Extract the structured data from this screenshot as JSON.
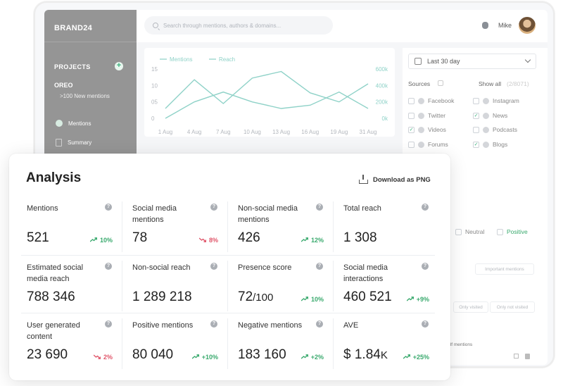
{
  "app": {
    "brand": "BRAND24",
    "search_placeholder": "Search through mentions, authors & domains...",
    "user": "Mike",
    "projects_label": "PROJECTS",
    "project_name": "OREO",
    "project_sub": ">100 New mentions",
    "nav": [
      {
        "label": "Mentions"
      },
      {
        "label": "Summary"
      }
    ]
  },
  "chart": {
    "legend_mentions": "Mentions",
    "legend_reach": "Reach",
    "left_ticks": [
      "15",
      "10",
      "05",
      "0"
    ],
    "right_ticks": [
      "600k",
      "400k",
      "200k",
      "0k"
    ],
    "x_ticks": [
      "1 Aug",
      "4 Aug",
      "7 Aug",
      "10 Aug",
      "13 Aug",
      "16 Aug",
      "19 Aug",
      "31 Aug"
    ],
    "color": "#8fd2c8"
  },
  "chart_data": {
    "type": "line",
    "x": [
      "1 Aug",
      "4 Aug",
      "7 Aug",
      "10 Aug",
      "13 Aug",
      "16 Aug",
      "19 Aug",
      "31 Aug"
    ],
    "ylim": [
      0,
      15
    ],
    "y2lim": [
      0,
      600000
    ],
    "series": [
      {
        "name": "Mentions",
        "values": [
          0,
          5,
          8,
          5,
          3,
          4,
          8,
          3
        ]
      },
      {
        "name": "Reach",
        "values": [
          120000,
          470000,
          180000,
          490000,
          570000,
          310000,
          200000,
          420000
        ]
      }
    ]
  },
  "filters": {
    "date": "Last 30 day",
    "sources_title": "Sources",
    "show_all": "Show all",
    "show_all_count": "(2/8071)",
    "sources": [
      {
        "label": "Facebook",
        "checked": false
      },
      {
        "label": "Instagram",
        "checked": false
      },
      {
        "label": "Twitter",
        "checked": false
      },
      {
        "label": "News",
        "checked": true
      },
      {
        "label": "Videos",
        "checked": true
      },
      {
        "label": "Podcasts",
        "checked": false
      },
      {
        "label": "Forums",
        "checked": false
      },
      {
        "label": "Blogs",
        "checked": true
      }
    ],
    "neutral": "Neutral",
    "positive": "Positive",
    "important": "Important mentions",
    "only_visited": "Only visited",
    "only_not_visited": "Only not visited",
    "pdf_mentions": "pdf mentions"
  },
  "analysis": {
    "title": "Analysis",
    "download": "Download as PNG",
    "metrics": [
      {
        "label": "Mentions",
        "value": "521",
        "change": "10%",
        "dir": "up"
      },
      {
        "label": "Social media mentions",
        "value": "78",
        "change": "8%",
        "dir": "down"
      },
      {
        "label": "Non-social media mentions",
        "value": "426",
        "change": "12%",
        "dir": "up"
      },
      {
        "label": "Total reach",
        "value": "1 308",
        "change": "",
        "dir": "none"
      },
      {
        "label": "Estimated social media reach",
        "value": "788 346",
        "change": "",
        "dir": "none"
      },
      {
        "label": "Non-social reach",
        "value": "1 289 218",
        "change": "",
        "dir": "none"
      },
      {
        "label": "Presence score",
        "value": "72",
        "value_suffix": "/100",
        "change": "10%",
        "dir": "up"
      },
      {
        "label": "Social media interactions",
        "value": "460 521",
        "change": "+9%",
        "dir": "up"
      },
      {
        "label": "User generated content",
        "value": "23 690",
        "change": "2%",
        "dir": "down"
      },
      {
        "label": "Positive mentions",
        "value": "80 040",
        "change": "+10%",
        "dir": "up"
      },
      {
        "label": "Negative mentions",
        "value": "183 160",
        "change": "+2%",
        "dir": "up"
      },
      {
        "label": "AVE",
        "value": "$ 1.84",
        "value_suffix": "K",
        "change": "+25%",
        "dir": "up"
      }
    ]
  }
}
